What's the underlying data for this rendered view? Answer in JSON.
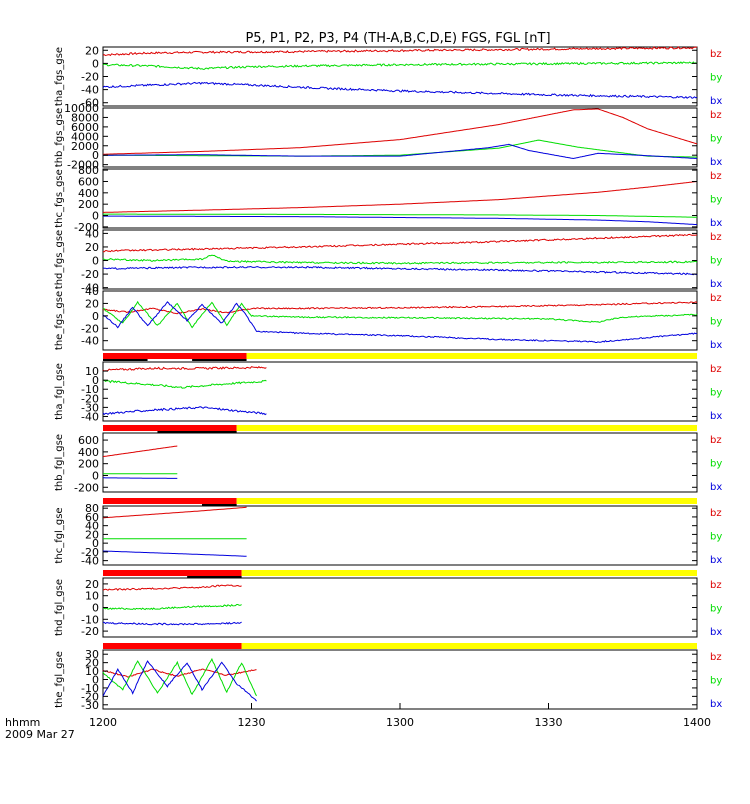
{
  "title": "P5, P1, P2, P3, P4 (TH-A,B,C,D,E) FGS, FGL [nT]",
  "time_axis": {
    "label_line1": "hhmm",
    "label_line2": "2009 Mar 27",
    "ticks": [
      "1200",
      "1230",
      "1300",
      "1330",
      "1400"
    ],
    "range_minutes": [
      0,
      120
    ]
  },
  "colors": {
    "bz": "#dd0000",
    "by": "#00dd00",
    "bx": "#0000dd",
    "bar_red": "#ff0000",
    "bar_yellow": "#ffff00",
    "bar_black": "#000000"
  },
  "chart_data": [
    {
      "type": "line",
      "ylabel": "tha_fgs_gse",
      "ylim": [
        -65,
        25
      ],
      "yticks": [
        "20",
        "0",
        "-20",
        "-40",
        "-60"
      ],
      "ytick_values": [
        20,
        0,
        -20,
        -40,
        -60
      ],
      "legend": [
        "bz",
        "by",
        "bx"
      ],
      "series": [
        {
          "name": "bz",
          "x": [
            0,
            10,
            20,
            40,
            80,
            120
          ],
          "values": [
            13,
            16,
            17,
            18,
            21,
            24
          ],
          "noise": 1.5
        },
        {
          "name": "by",
          "x": [
            0,
            10,
            20,
            30,
            60,
            120
          ],
          "values": [
            -2,
            -4,
            -8,
            -5,
            -2,
            1
          ],
          "noise": 1.5
        },
        {
          "name": "bx",
          "x": [
            0,
            10,
            20,
            30,
            45,
            60,
            90,
            120
          ],
          "values": [
            -36,
            -33,
            -30,
            -33,
            -38,
            -42,
            -48,
            -52
          ],
          "noise": 1.5
        }
      ]
    },
    {
      "type": "line",
      "ylabel": "thb_fgs_gse",
      "ylim": [
        -2500,
        10000
      ],
      "yticks": [
        "10000",
        "8000",
        "6000",
        "4000",
        "2000",
        "0",
        "-2000"
      ],
      "ytick_values": [
        10000,
        8000,
        6000,
        4000,
        2000,
        0,
        -2000
      ],
      "legend": [
        "bz",
        "by",
        "bx"
      ],
      "series": [
        {
          "name": "bz",
          "x": [
            0,
            20,
            40,
            60,
            80,
            95,
            100,
            105,
            110,
            120
          ],
          "values": [
            200,
            800,
            1600,
            3300,
            6500,
            9600,
            9800,
            8000,
            5600,
            2400
          ],
          "noise": 0
        },
        {
          "name": "by",
          "x": [
            0,
            20,
            40,
            60,
            80,
            88,
            96,
            110,
            120
          ],
          "values": [
            0,
            -100,
            -200,
            0,
            1500,
            3200,
            1700,
            -200,
            -400
          ],
          "noise": 0
        },
        {
          "name": "bx",
          "x": [
            0,
            20,
            40,
            60,
            78,
            82,
            86,
            95,
            100,
            110,
            120
          ],
          "values": [
            0,
            100,
            -200,
            -200,
            1600,
            2300,
            1000,
            -700,
            400,
            -100,
            -700
          ],
          "noise": 0
        }
      ]
    },
    {
      "type": "line",
      "ylabel": "thc_fgs_gse",
      "ylim": [
        -220,
        820
      ],
      "yticks": [
        "800",
        "600",
        "400",
        "200",
        "0",
        "-200"
      ],
      "ytick_values": [
        800,
        600,
        400,
        200,
        0,
        -200
      ],
      "legend": [
        "bz",
        "by",
        "bx"
      ],
      "series": [
        {
          "name": "bz",
          "x": [
            0,
            20,
            40,
            60,
            80,
            100,
            110,
            120
          ],
          "values": [
            55,
            95,
            140,
            200,
            280,
            410,
            500,
            600
          ],
          "noise": 0
        },
        {
          "name": "by",
          "x": [
            0,
            40,
            80,
            100,
            120
          ],
          "values": [
            25,
            20,
            10,
            0,
            -30
          ],
          "noise": 0
        },
        {
          "name": "bx",
          "x": [
            0,
            40,
            80,
            100,
            110,
            120
          ],
          "values": [
            -10,
            -20,
            -50,
            -80,
            -110,
            -160
          ],
          "noise": 0
        }
      ]
    },
    {
      "type": "line",
      "ylabel": "thd_fgs_gse",
      "ylim": [
        -42,
        45
      ],
      "yticks": [
        "40",
        "20",
        "0",
        "-20",
        "-40"
      ],
      "ytick_values": [
        40,
        20,
        0,
        -20,
        -40
      ],
      "legend": [
        "bz",
        "by",
        "bx"
      ],
      "series": [
        {
          "name": "bz",
          "x": [
            0,
            20,
            40,
            60,
            80,
            100,
            120
          ],
          "values": [
            14,
            17,
            20,
            24,
            28,
            33,
            38
          ],
          "noise": 1.2
        },
        {
          "name": "by",
          "x": [
            0,
            10,
            20,
            22,
            25,
            40,
            60,
            120
          ],
          "values": [
            2,
            0,
            2,
            8,
            -1,
            -3,
            -4,
            -2
          ],
          "noise": 1.2
        },
        {
          "name": "bx",
          "x": [
            0,
            20,
            40,
            60,
            80,
            100,
            120
          ],
          "values": [
            -12,
            -10,
            -10,
            -12,
            -14,
            -17,
            -20
          ],
          "noise": 1.2
        }
      ]
    },
    {
      "type": "line",
      "ylabel": "the_fgs_gse",
      "ylim": [
        -55,
        40
      ],
      "yticks": [
        "40",
        "20",
        "0",
        "-20",
        "-40"
      ],
      "ytick_values": [
        40,
        20,
        0,
        -20,
        -40
      ],
      "legend": [
        "bz",
        "by",
        "bx"
      ],
      "series": [
        {
          "name": "bz",
          "x": [
            0,
            5,
            10,
            15,
            20,
            25,
            30,
            40,
            60,
            80,
            100,
            120
          ],
          "values": [
            10,
            6,
            12,
            4,
            11,
            5,
            12,
            12,
            13,
            15,
            18,
            22
          ],
          "noise": 1
        },
        {
          "name": "by",
          "x": [
            0,
            4,
            7,
            11,
            15,
            18,
            22,
            25,
            28,
            30,
            40,
            60,
            90,
            100,
            105,
            120
          ],
          "values": [
            12,
            -12,
            22,
            -16,
            20,
            -18,
            22,
            -15,
            20,
            0,
            -2,
            -3,
            -5,
            -10,
            -2,
            2
          ],
          "noise": 1
        },
        {
          "name": "bx",
          "x": [
            0,
            3,
            6,
            9,
            13,
            17,
            20,
            24,
            27,
            29,
            31,
            40,
            60,
            80,
            100,
            120
          ],
          "values": [
            2,
            -18,
            14,
            -16,
            22,
            -8,
            18,
            -12,
            20,
            0,
            -25,
            -28,
            -32,
            -38,
            -42,
            -28
          ],
          "noise": 1
        }
      ]
    },
    {
      "type": "line",
      "ylabel": "tha_fgl_gse",
      "ylim": [
        -45,
        20
      ],
      "yticks": [
        "10",
        "0",
        "-10",
        "-20",
        "-30",
        "-40"
      ],
      "ytick_values": [
        10,
        0,
        -10,
        -20,
        -30,
        -40
      ],
      "legend": [
        "bz",
        "by",
        "bx"
      ],
      "bar": {
        "red_until": 29,
        "yellow_from": 29,
        "black_segments": [
          [
            0,
            9
          ],
          [
            18,
            29
          ]
        ]
      },
      "series": [
        {
          "name": "bz",
          "x": [
            0,
            10,
            20,
            33
          ],
          "values": [
            11,
            13,
            13,
            14
          ],
          "noise": 1.5
        },
        {
          "name": "by",
          "x": [
            0,
            10,
            16,
            25,
            33
          ],
          "values": [
            -1,
            -5,
            -8,
            -4,
            -1
          ],
          "noise": 1.5
        },
        {
          "name": "bx",
          "x": [
            0,
            10,
            20,
            33
          ],
          "values": [
            -37,
            -33,
            -30,
            -37
          ],
          "noise": 1.5
        }
      ]
    },
    {
      "type": "line",
      "ylabel": "thb_fgl_gse",
      "ylim": [
        -280,
        720
      ],
      "yticks": [
        "600",
        "400",
        "200",
        "0",
        "-200"
      ],
      "ytick_values": [
        600,
        400,
        200,
        0,
        -200
      ],
      "legend": [
        "bz",
        "by",
        "bx"
      ],
      "bar": {
        "red_until": 27,
        "yellow_from": 27,
        "black_segments": [
          [
            11,
            27
          ]
        ]
      },
      "series": [
        {
          "name": "bz",
          "x": [
            0,
            5,
            10,
            15
          ],
          "values": [
            320,
            380,
            440,
            500
          ],
          "noise": 0
        },
        {
          "name": "by",
          "x": [
            0,
            15
          ],
          "values": [
            30,
            30
          ],
          "noise": 0
        },
        {
          "name": "bx",
          "x": [
            0,
            15
          ],
          "values": [
            -40,
            -50
          ],
          "noise": 0
        }
      ]
    },
    {
      "type": "line",
      "ylabel": "thc_fgl_gse",
      "ylim": [
        -50,
        85
      ],
      "yticks": [
        "80",
        "60",
        "40",
        "20",
        "0",
        "-20",
        "-40"
      ],
      "ytick_values": [
        80,
        60,
        40,
        20,
        0,
        -20,
        -40
      ],
      "legend": [
        "bz",
        "by",
        "bx"
      ],
      "bar": {
        "red_until": 27,
        "yellow_from": 27,
        "black_segments": [
          [
            20,
            27
          ]
        ]
      },
      "series": [
        {
          "name": "bz",
          "x": [
            0,
            10,
            20,
            29
          ],
          "values": [
            58,
            66,
            74,
            82
          ],
          "noise": 0
        },
        {
          "name": "by",
          "x": [
            0,
            29
          ],
          "values": [
            10,
            10
          ],
          "noise": 0
        },
        {
          "name": "bx",
          "x": [
            0,
            10,
            20,
            29
          ],
          "values": [
            -18,
            -22,
            -26,
            -30
          ],
          "noise": 0
        }
      ]
    },
    {
      "type": "line",
      "ylabel": "thd_fgl_gse",
      "ylim": [
        -25,
        25
      ],
      "yticks": [
        "20",
        "10",
        "0",
        "-10",
        "-20"
      ],
      "ytick_values": [
        20,
        10,
        0,
        -10,
        -20
      ],
      "legend": [
        "bz",
        "by",
        "bx"
      ],
      "bar": {
        "red_until": 28,
        "yellow_from": 28,
        "black_segments": [
          [
            17,
            28
          ]
        ]
      },
      "series": [
        {
          "name": "bz",
          "x": [
            0,
            10,
            20,
            25,
            28
          ],
          "values": [
            15,
            16,
            17,
            19,
            18
          ],
          "noise": 1.2
        },
        {
          "name": "by",
          "x": [
            0,
            10,
            20,
            28
          ],
          "values": [
            -1,
            -1,
            1,
            2
          ],
          "noise": 1.2
        },
        {
          "name": "bx",
          "x": [
            0,
            10,
            20,
            28
          ],
          "values": [
            -13,
            -14,
            -14,
            -13
          ],
          "noise": 1.2
        }
      ]
    },
    {
      "type": "line",
      "ylabel": "the_fgl_gse",
      "ylim": [
        -35,
        35
      ],
      "yticks": [
        "30",
        "20",
        "10",
        "0",
        "-10",
        "-20",
        "-30"
      ],
      "ytick_values": [
        30,
        20,
        10,
        0,
        -10,
        -20,
        -30
      ],
      "legend": [
        "bz",
        "by",
        "bx"
      ],
      "bar": {
        "red_until": 28,
        "yellow_from": 28,
        "black_segments": []
      },
      "series": [
        {
          "name": "bz",
          "x": [
            0,
            5,
            10,
            15,
            20,
            25,
            31
          ],
          "values": [
            11,
            3,
            12,
            4,
            12,
            5,
            12
          ],
          "noise": 1
        },
        {
          "name": "by",
          "x": [
            0,
            4,
            7,
            11,
            15,
            18,
            22,
            25,
            28,
            31
          ],
          "values": [
            8,
            -12,
            22,
            -16,
            20,
            -18,
            24,
            -15,
            20,
            -20
          ],
          "noise": 1
        },
        {
          "name": "bx",
          "x": [
            0,
            3,
            6,
            9,
            13,
            17,
            20,
            24,
            27,
            31
          ],
          "values": [
            -20,
            12,
            -16,
            22,
            -8,
            20,
            -12,
            20,
            -5,
            -25
          ],
          "noise": 1
        }
      ]
    }
  ]
}
